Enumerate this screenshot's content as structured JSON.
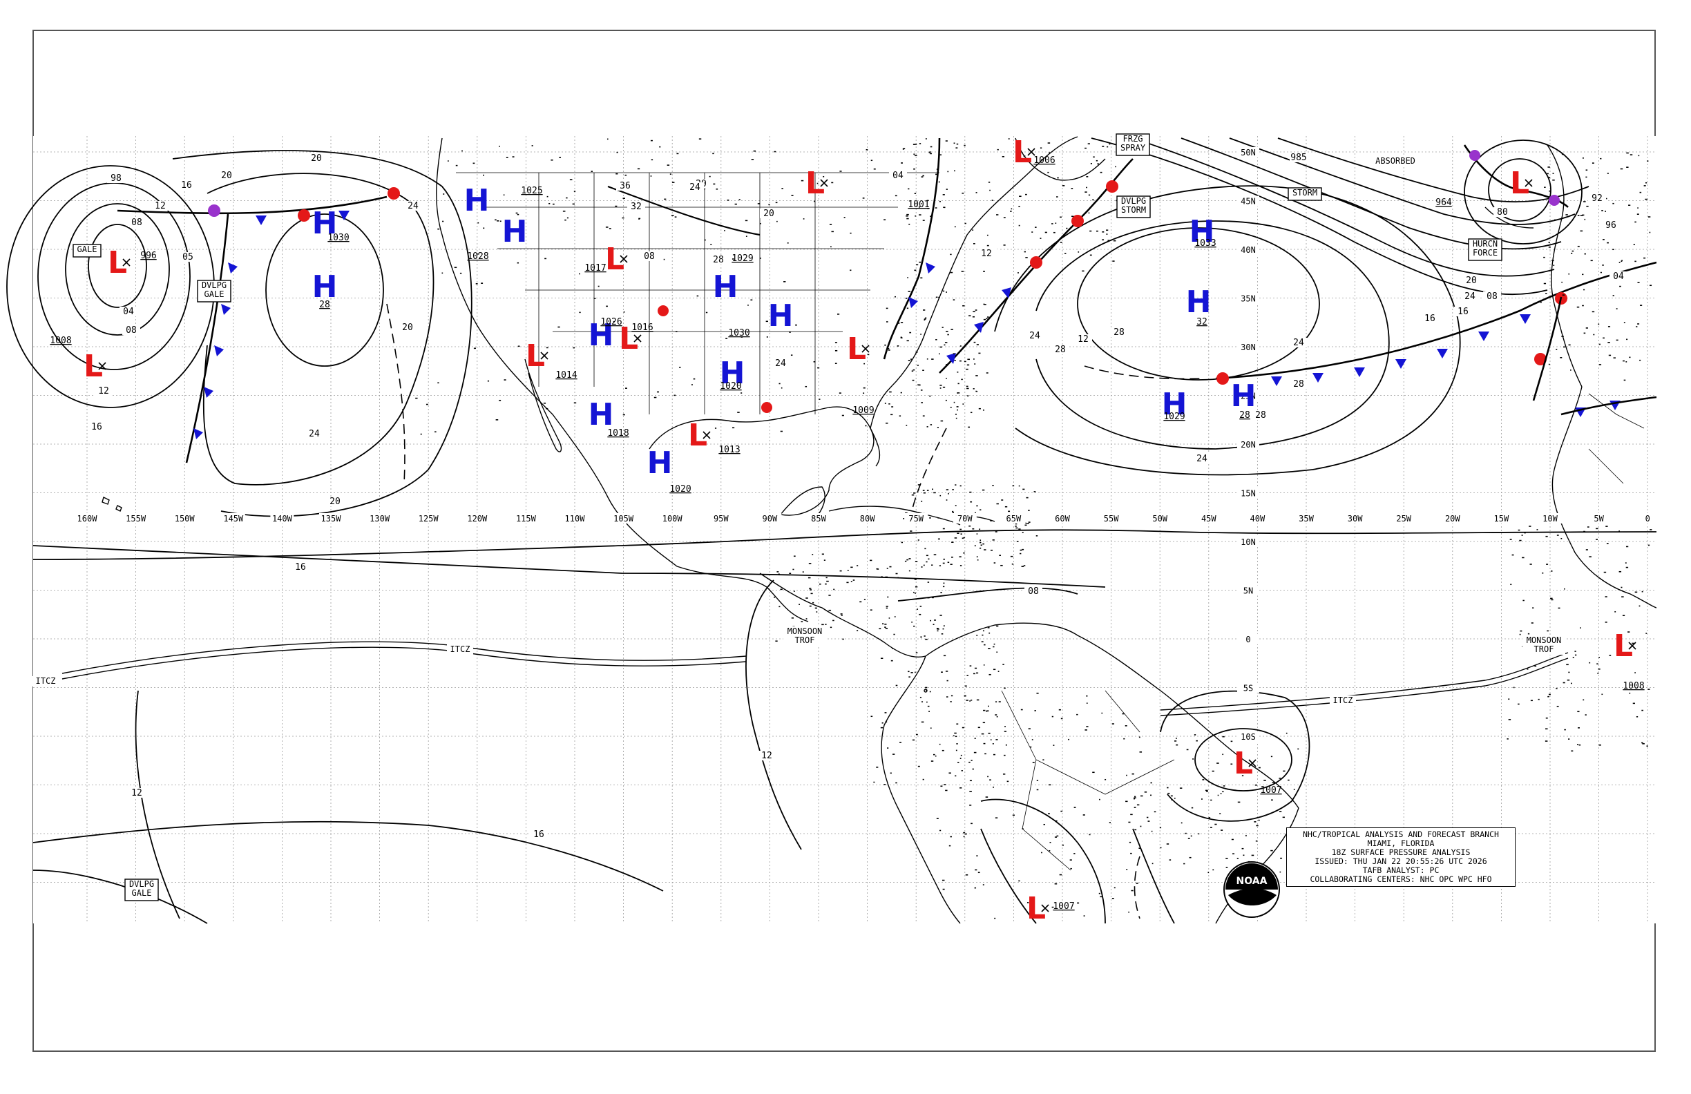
{
  "map": {
    "info_box": {
      "lines": [
        "NHC/TROPICAL ANALYSIS AND FORECAST BRANCH",
        "MIAMI, FLORIDA",
        "18Z SURFACE PRESSURE ANALYSIS",
        "ISSUED: THU JAN 22 20:55:26 UTC 2026",
        "TAFB ANALYST: PC",
        "COLLABORATING CENTERS: NHC OPC WPC HFO"
      ]
    },
    "logo_text": "NOAA",
    "longitude_labels": [
      "160W",
      "155W",
      "150W",
      "145W",
      "140W",
      "135W",
      "130W",
      "125W",
      "120W",
      "115W",
      "110W",
      "105W",
      "100W",
      "95W",
      "90W",
      "85W",
      "80W",
      "75W",
      "70W",
      "65W",
      "60W",
      "55W",
      "50W",
      "45W",
      "40W",
      "35W",
      "30W",
      "25W",
      "20W",
      "15W",
      "10W",
      "5W",
      "0"
    ],
    "latitude_labels": [
      "50N",
      "45N",
      "40N",
      "35N",
      "30N",
      "25N",
      "20N",
      "15N",
      "10N",
      "5N",
      "0",
      "5S",
      "10S"
    ],
    "pressure_systems": [
      {
        "type": "H",
        "value": "28"
      },
      {
        "type": "H",
        "value": "1030"
      },
      {
        "type": "H",
        "value": "32"
      },
      {
        "type": "H",
        "value": "1033"
      },
      {
        "type": "H",
        "value": "28"
      },
      {
        "type": "H",
        "value": "1029"
      },
      {
        "type": "H",
        "value": "1028"
      },
      {
        "type": "H",
        "value": "1025"
      },
      {
        "type": "H",
        "value": "1026"
      },
      {
        "type": "H",
        "value": "1029"
      },
      {
        "type": "H",
        "value": "1030"
      },
      {
        "type": "H",
        "value": "1020"
      },
      {
        "type": "H",
        "value": "1018"
      },
      {
        "type": "H",
        "value": "1020"
      },
      {
        "type": "L",
        "value": "996"
      },
      {
        "type": "L",
        "value": "1008"
      },
      {
        "type": "L",
        "value": "1017"
      },
      {
        "type": "L",
        "value": "1016"
      },
      {
        "type": "L",
        "value": "1014"
      },
      {
        "type": "L",
        "value": "1013"
      },
      {
        "type": "L",
        "value": "1001"
      },
      {
        "type": "L",
        "value": "1006"
      },
      {
        "type": "L",
        "value": "1009"
      },
      {
        "type": "L",
        "value": "1007"
      },
      {
        "type": "L",
        "value": "1007"
      },
      {
        "type": "L",
        "value": "1008"
      },
      {
        "type": "L",
        "value": "964"
      }
    ],
    "isobar_labels": [
      "98",
      "16",
      "20",
      "20",
      "12",
      "08",
      "05",
      "04",
      "08",
      "12",
      "16",
      "24",
      "20",
      "24",
      "20",
      "16",
      "20",
      "24",
      "28",
      "08",
      "04",
      "24",
      "28",
      "12",
      "16",
      "20",
      "24",
      "28",
      "28",
      "24",
      "28",
      "24",
      "16",
      "12",
      "08",
      "12",
      "16",
      "12",
      "985",
      "80",
      "92",
      "96",
      "04",
      "08",
      "36",
      "32",
      "20",
      "24",
      "12"
    ],
    "warning_boxes": [
      "GALE",
      "DVLPG GALE",
      "DVLPG GALE",
      "FRZG SPRAY",
      "DVLPG STORM",
      "STORM",
      "HURCN FORCE"
    ],
    "feature_labels": [
      "ABSORBED",
      "ITCZ",
      "ITCZ",
      "ITCZ",
      "MONSOON TROF",
      "MONSOON TROF"
    ],
    "colors": {
      "high": "#1414d4",
      "low": "#e41818",
      "occluded": "#9933cc",
      "grid": "#9a9a9a",
      "line": "#000000"
    }
  }
}
